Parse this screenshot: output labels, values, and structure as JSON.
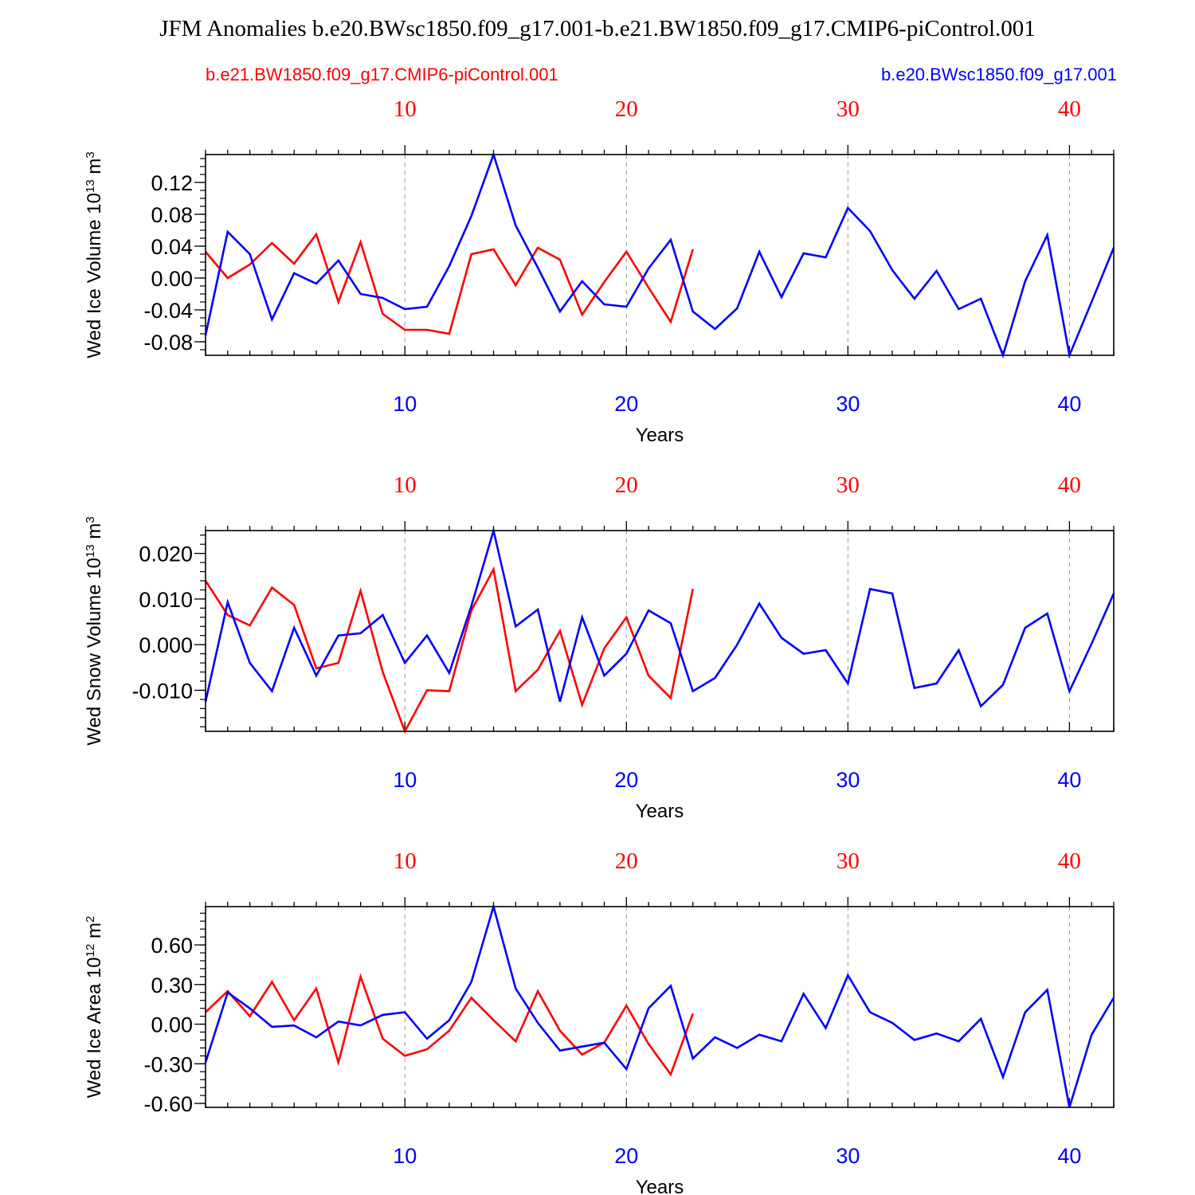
{
  "title": "JFM Anomalies b.e20.BWsc1850.f09_g17.001-b.e21.BW1850.f09_g17.CMIP6-piControl.001",
  "legend": {
    "red_label": "b.e21.BW1850.f09_g17.CMIP6-piControl.001",
    "blue_label": "b.e20.BWsc1850.f09_g17.001"
  },
  "colors": {
    "red": "#ff0000",
    "blue": "#0000ff",
    "axis": "#000000",
    "grid": "#999999"
  },
  "chart_data": [
    {
      "type": "line",
      "ylabel_main": "Wed Ice Volume 10",
      "ylabel_exp": "13",
      "ylabel_unit": " m",
      "ylabel_unit_exp": "3",
      "xlabel": "Years",
      "xlim": [
        1,
        42
      ],
      "ylim": [
        -0.097,
        0.155
      ],
      "yticks": [
        -0.08,
        -0.04,
        0.0,
        0.04,
        0.08,
        0.12
      ],
      "ytick_labels": [
        "-0.08",
        "-0.04",
        "0.00",
        "0.04",
        "0.08",
        "0.12"
      ],
      "yminor_step": 0.01,
      "xticks": [
        10,
        20,
        30,
        40
      ],
      "xtick_labels": [
        "10",
        "20",
        "30",
        "40"
      ],
      "top_xtick_labels": [
        "10",
        "20",
        "30",
        "40"
      ],
      "series": [
        {
          "name": "b.e21.BW1850.f09_g17.CMIP6-piControl.001",
          "color": "red",
          "x": [
            1,
            2,
            3,
            4,
            5,
            6,
            7,
            8,
            9,
            10,
            11,
            12,
            13,
            14,
            15,
            16,
            17,
            18,
            19,
            20,
            21,
            22,
            23
          ],
          "values": [
            0.033,
            0.0,
            0.017,
            0.044,
            0.018,
            0.055,
            -0.03,
            0.045,
            -0.045,
            -0.065,
            -0.065,
            -0.07,
            0.03,
            0.036,
            -0.009,
            0.038,
            0.023,
            -0.046,
            -0.005,
            0.033,
            -0.012,
            -0.055,
            0.036
          ]
        },
        {
          "name": "b.e20.BWsc1850.f09_g17.001",
          "color": "blue",
          "x": [
            1,
            2,
            3,
            4,
            5,
            6,
            7,
            8,
            9,
            10,
            11,
            12,
            13,
            14,
            15,
            16,
            17,
            18,
            19,
            20,
            21,
            22,
            23,
            24,
            25,
            26,
            27,
            28,
            29,
            30,
            31,
            32,
            33,
            34,
            35,
            36,
            37,
            38,
            39,
            40,
            41,
            42
          ],
          "values": [
            -0.072,
            0.058,
            0.03,
            -0.052,
            0.006,
            -0.007,
            0.022,
            -0.02,
            -0.025,
            -0.039,
            -0.036,
            0.015,
            0.078,
            0.155,
            0.066,
            0.013,
            -0.042,
            -0.004,
            -0.033,
            -0.036,
            0.012,
            0.048,
            -0.042,
            -0.064,
            -0.038,
            0.033,
            -0.024,
            0.031,
            0.026,
            0.088,
            0.059,
            0.01,
            -0.026,
            0.009,
            -0.039,
            -0.026,
            -0.097,
            -0.004,
            0.054,
            -0.097,
            -0.03,
            0.038
          ]
        }
      ]
    },
    {
      "type": "line",
      "ylabel_main": "Wed Snow Volume 10",
      "ylabel_exp": "13",
      "ylabel_unit": " m",
      "ylabel_unit_exp": "3",
      "xlabel": "Years",
      "xlim": [
        1,
        42
      ],
      "ylim": [
        -0.019,
        0.025
      ],
      "yticks": [
        -0.01,
        0.0,
        0.01,
        0.02
      ],
      "ytick_labels": [
        "-0.010",
        "0.000",
        "0.010",
        "0.020"
      ],
      "yminor_step": 0.002,
      "xticks": [
        10,
        20,
        30,
        40
      ],
      "xtick_labels": [
        "10",
        "20",
        "30",
        "40"
      ],
      "top_xtick_labels": [
        "10",
        "20",
        "30",
        "40"
      ],
      "series": [
        {
          "name": "b.e21.BW1850.f09_g17.CMIP6-piControl.001",
          "color": "red",
          "x": [
            1,
            2,
            3,
            4,
            5,
            6,
            7,
            8,
            9,
            10,
            11,
            12,
            13,
            14,
            15,
            16,
            17,
            18,
            19,
            20,
            21,
            22,
            23
          ],
          "values": [
            0.014,
            0.0065,
            0.0042,
            0.0125,
            0.0087,
            -0.0052,
            -0.004,
            0.0118,
            -0.006,
            -0.019,
            -0.01,
            -0.0102,
            0.0075,
            0.0165,
            -0.0102,
            -0.0055,
            0.003,
            -0.0132,
            -0.0008,
            0.006,
            -0.0068,
            -0.0117,
            0.0122
          ]
        },
        {
          "name": "b.e20.BWsc1850.f09_g17.001",
          "color": "blue",
          "x": [
            1,
            2,
            3,
            4,
            5,
            6,
            7,
            8,
            9,
            10,
            11,
            12,
            13,
            14,
            15,
            16,
            17,
            18,
            19,
            20,
            21,
            22,
            23,
            24,
            25,
            26,
            27,
            28,
            29,
            30,
            31,
            32,
            33,
            34,
            35,
            36,
            37,
            38,
            39,
            40,
            41,
            42
          ],
          "values": [
            -0.0125,
            0.0093,
            -0.004,
            -0.0102,
            0.0037,
            -0.0068,
            0.002,
            0.0025,
            0.0065,
            -0.004,
            0.002,
            -0.0062,
            0.0085,
            0.025,
            0.004,
            0.0077,
            -0.0125,
            0.006,
            -0.0068,
            -0.002,
            0.0075,
            0.0047,
            -0.0102,
            -0.0073,
            0.0,
            0.009,
            0.0015,
            -0.002,
            -0.0012,
            -0.0085,
            0.0122,
            0.0112,
            -0.0095,
            -0.0085,
            -0.0012,
            -0.0135,
            -0.0088,
            0.0037,
            0.0068,
            -0.0102,
            0.0002,
            0.0112
          ]
        }
      ]
    },
    {
      "type": "line",
      "ylabel_main": "Wed Ice Area 10",
      "ylabel_exp": "12",
      "ylabel_unit": " m",
      "ylabel_unit_exp": "2",
      "xlabel": "Years",
      "xlim": [
        1,
        42
      ],
      "ylim": [
        -0.63,
        0.89
      ],
      "yticks": [
        -0.6,
        -0.3,
        0.0,
        0.3,
        0.6
      ],
      "ytick_labels": [
        "-0.60",
        "-0.30",
        "0.00",
        "0.30",
        "0.60"
      ],
      "yminor_step": 0.06,
      "xticks": [
        10,
        20,
        30,
        40
      ],
      "xtick_labels": [
        "10",
        "20",
        "30",
        "40"
      ],
      "top_xtick_labels": [
        "10",
        "20",
        "30",
        "40"
      ],
      "series": [
        {
          "name": "b.e21.BW1850.f09_g17.CMIP6-piControl.001",
          "color": "red",
          "x": [
            1,
            2,
            3,
            4,
            5,
            6,
            7,
            8,
            9,
            10,
            11,
            12,
            13,
            14,
            15,
            16,
            17,
            18,
            19,
            20,
            21,
            22,
            23
          ],
          "values": [
            0.09,
            0.25,
            0.06,
            0.32,
            0.03,
            0.27,
            -0.29,
            0.36,
            -0.11,
            -0.24,
            -0.19,
            -0.05,
            0.2,
            0.03,
            -0.13,
            0.25,
            -0.05,
            -0.23,
            -0.14,
            0.14,
            -0.15,
            -0.38,
            0.08
          ]
        },
        {
          "name": "b.e20.BWsc1850.f09_g17.001",
          "color": "blue",
          "x": [
            1,
            2,
            3,
            4,
            5,
            6,
            7,
            8,
            9,
            10,
            11,
            12,
            13,
            14,
            15,
            16,
            17,
            18,
            19,
            20,
            21,
            22,
            23,
            24,
            25,
            26,
            27,
            28,
            29,
            30,
            31,
            32,
            33,
            34,
            35,
            36,
            37,
            38,
            39,
            40,
            41,
            42
          ],
          "values": [
            -0.29,
            0.24,
            0.12,
            -0.02,
            -0.01,
            -0.1,
            0.02,
            -0.01,
            0.07,
            0.09,
            -0.11,
            0.03,
            0.32,
            0.89,
            0.27,
            0.01,
            -0.2,
            -0.17,
            -0.14,
            -0.34,
            0.12,
            0.29,
            -0.26,
            -0.1,
            -0.18,
            -0.08,
            -0.13,
            0.23,
            -0.03,
            0.37,
            0.09,
            0.01,
            -0.12,
            -0.07,
            -0.13,
            0.04,
            -0.4,
            0.09,
            0.26,
            -0.63,
            -0.08,
            0.2
          ]
        }
      ]
    }
  ]
}
